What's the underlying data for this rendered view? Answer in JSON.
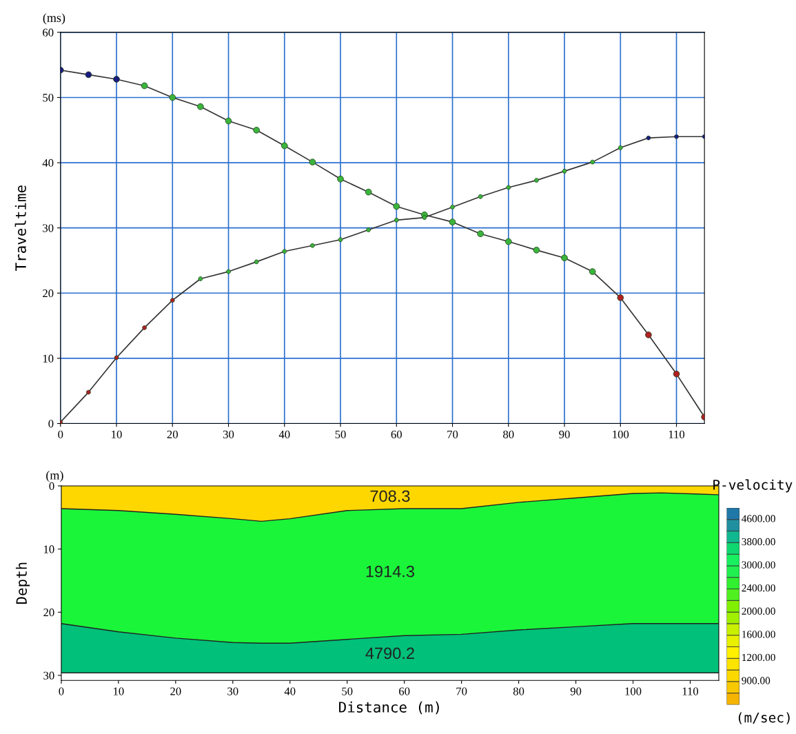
{
  "chart_data": [
    {
      "type": "line",
      "ylabel": "Traveltime",
      "annotations": [
        "(ms)"
      ],
      "x": [
        0,
        5,
        10,
        15,
        20,
        25,
        30,
        35,
        40,
        45,
        50,
        55,
        60,
        65,
        70,
        75,
        80,
        85,
        90,
        95,
        100,
        105,
        110,
        115
      ],
      "series": [
        {
          "color": "#333333",
          "values": [
            54.2,
            53.5,
            52.8,
            51.8,
            50.0,
            48.6,
            46.4,
            45.0,
            42.6,
            40.1,
            37.5,
            35.5,
            33.3,
            32.0,
            30.9,
            29.1,
            27.9,
            26.6,
            25.4,
            23.3,
            19.3,
            13.6,
            7.6,
            1.0
          ],
          "colors": [
            "#1a1a80",
            "#1a1a80",
            "#1a1a80",
            "#3cb43c",
            "#3cb43c",
            "#3cb43c",
            "#3cb43c",
            "#3cb43c",
            "#3cb43c",
            "#3cb43c",
            "#3cb43c",
            "#3cb43c",
            "#3cb43c",
            "#3cb43c",
            "#3cb43c",
            "#3cb43c",
            "#3cb43c",
            "#3cb43c",
            "#3cb43c",
            "#3cb43c",
            "#b02020",
            "#b02020",
            "#b02020",
            "#b02020"
          ]
        },
        {
          "color": "#333333",
          "values": [
            0.2,
            4.8,
            10.1,
            14.7,
            18.9,
            22.2,
            23.3,
            24.8,
            26.4,
            27.3,
            28.2,
            29.7,
            31.2,
            31.6,
            33.2,
            34.8,
            36.2,
            37.3,
            38.7,
            40.1,
            42.3,
            43.8,
            44.0,
            44.0
          ],
          "colors": [
            "#b02020",
            "#b02020",
            "#b02020",
            "#b02020",
            "#b02020",
            "#3cb43c",
            "#3cb43c",
            "#3cb43c",
            "#3cb43c",
            "#3cb43c",
            "#3cb43c",
            "#3cb43c",
            "#3cb43c",
            "#3cb43c",
            "#3cb43c",
            "#3cb43c",
            "#3cb43c",
            "#3cb43c",
            "#3cb43c",
            "#3cb43c",
            "#3cb43c",
            "#1a1a80",
            "#1a1a80",
            "#1a1a80"
          ]
        }
      ],
      "xlim": [
        0,
        115
      ],
      "ylim": [
        0,
        60
      ],
      "xticks": [
        0,
        10,
        20,
        30,
        40,
        50,
        60,
        70,
        80,
        90,
        100,
        110
      ],
      "yticks": [
        0,
        10,
        20,
        30,
        40,
        50,
        60
      ],
      "grid": true,
      "marker": "circle",
      "line_style": "solid"
    },
    {
      "type": "area",
      "stacked": true,
      "xlabel": "Distance (m)",
      "ylabel": "Depth",
      "clabel": "P-velocity",
      "annotations": [
        "(m)",
        "(m/sec)",
        "708.3",
        "1914.3",
        "4790.2",
        "900.00",
        "1200.00",
        "1600.00",
        "2000.00",
        "2400.00",
        "3000.00",
        "3800.00",
        "4600.00"
      ],
      "x": [
        0,
        10,
        20,
        30,
        35,
        40,
        50,
        60,
        70,
        80,
        90,
        100,
        105,
        115
      ],
      "series": [
        {
          "color": "#ffd700",
          "values": [
            3.6,
            3.9,
            4.5,
            5.2,
            5.6,
            5.2,
            3.9,
            3.6,
            3.6,
            2.6,
            1.9,
            1.2,
            1.1,
            1.4
          ]
        },
        {
          "color": "#1af53a",
          "values": [
            18.2,
            19.2,
            19.6,
            19.6,
            19.3,
            19.7,
            20.4,
            20.1,
            19.9,
            20.2,
            20.4,
            20.6,
            20.7,
            20.4
          ]
        },
        {
          "color": "#00c07a",
          "values": [
            7.8,
            6.5,
            5.5,
            4.8,
            4.7,
            4.7,
            5.3,
            5.9,
            6.1,
            6.8,
            7.3,
            7.8,
            7.8,
            7.8
          ]
        }
      ],
      "xlim": [
        0,
        115
      ],
      "ylim": [
        30.8,
        0
      ],
      "xticks": [
        0,
        10,
        20,
        30,
        40,
        50,
        60,
        70,
        80,
        90,
        100,
        110
      ],
      "yticks": [
        0,
        10,
        20,
        30
      ],
      "colors": [
        "#f5b400",
        "#f8c800",
        "#fbd800",
        "#fde400",
        "#fff000",
        "#e8f000",
        "#c8f000",
        "#a0f000",
        "#80f000",
        "#50f020",
        "#30f030",
        "#20f050",
        "#18f060",
        "#10d870",
        "#10b890",
        "#2090a0",
        "#1f78a8"
      ],
      "grid": false
    }
  ]
}
